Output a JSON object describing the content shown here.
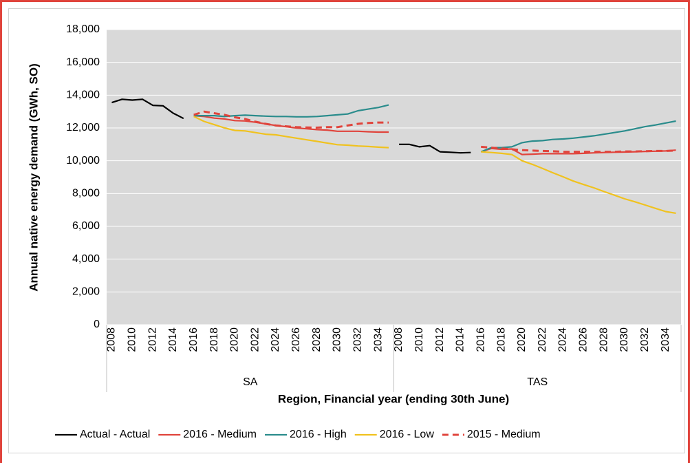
{
  "chart_data": {
    "type": "line",
    "y_label": "Annual native energy demand (GWh, SO)",
    "x_label": "Region, Financial year (ending 30th June)",
    "groups": [
      "SA",
      "TAS"
    ],
    "categories": [
      "2008",
      null,
      "2010",
      null,
      "2012",
      null,
      "2014",
      null,
      "2016",
      null,
      "2018",
      null,
      "2020",
      null,
      "2022",
      null,
      "2024",
      null,
      "2026",
      null,
      "2028",
      null,
      "2030",
      null,
      "2032",
      null,
      "2034",
      null,
      "2008",
      null,
      "2010",
      null,
      "2012",
      null,
      "2014",
      null,
      "2016",
      null,
      "2018",
      null,
      "2020",
      null,
      "2022",
      null,
      "2024",
      null,
      "2026",
      null,
      "2028",
      null,
      "2030",
      null,
      "2032",
      null,
      "2034",
      null
    ],
    "ylim": [
      0,
      18000
    ],
    "yticks": [
      0,
      {
        "value": 2000,
        "label": "2,000"
      },
      {
        "value": 4000,
        "label": "4,000"
      },
      {
        "value": 6000,
        "label": "6,000"
      },
      {
        "value": 8000,
        "label": "8,000"
      },
      {
        "value": 10000,
        "label": "10,000"
      },
      {
        "value": 12000,
        "label": "12,000"
      },
      {
        "value": 14000,
        "label": "14,000"
      },
      {
        "value": 16000,
        "label": "16,000"
      },
      {
        "value": 18000,
        "label": "18,000"
      }
    ],
    "grid": true,
    "legend": "bottom",
    "series": [
      {
        "name": "Actual - Actual",
        "color": "#000000",
        "dashed": false,
        "values": [
          13550,
          13750,
          13700,
          13750,
          13380,
          13350,
          12900,
          12580,
          null,
          null,
          null,
          null,
          null,
          null,
          null,
          null,
          null,
          null,
          null,
          null,
          null,
          null,
          null,
          null,
          null,
          null,
          null,
          null,
          11000,
          11000,
          10850,
          10920,
          10550,
          10520,
          10480,
          10500,
          null,
          null,
          null,
          null,
          null,
          null,
          null,
          null,
          null,
          null,
          null,
          null,
          null,
          null,
          null,
          null,
          null,
          null,
          null,
          null
        ]
      },
      {
        "name": "2016 - Medium",
        "color": "#e0443c",
        "dashed": false,
        "values": [
          null,
          null,
          null,
          null,
          null,
          null,
          null,
          null,
          12750,
          12700,
          12600,
          12550,
          12450,
          12430,
          12350,
          12250,
          12150,
          12080,
          12000,
          11950,
          11900,
          11870,
          11800,
          11800,
          11800,
          11770,
          11750,
          11750,
          null,
          null,
          null,
          null,
          null,
          null,
          null,
          null,
          10550,
          10750,
          10700,
          10720,
          10380,
          10400,
          10430,
          10430,
          10430,
          10430,
          10450,
          10480,
          10500,
          10520,
          10530,
          10550,
          10570,
          10580,
          10600,
          10650
        ]
      },
      {
        "name": "2016 - High",
        "color": "#2a8c8c",
        "dashed": false,
        "values": [
          null,
          null,
          null,
          null,
          null,
          null,
          null,
          null,
          12750,
          12750,
          12750,
          12700,
          12750,
          12780,
          12750,
          12720,
          12700,
          12700,
          12680,
          12680,
          12700,
          12750,
          12800,
          12850,
          13050,
          13150,
          13250,
          13400,
          null,
          null,
          null,
          null,
          null,
          null,
          null,
          null,
          10550,
          10800,
          10800,
          10850,
          11100,
          11200,
          11230,
          11300,
          11330,
          11380,
          11450,
          11520,
          11620,
          11720,
          11820,
          11950,
          12080,
          12180,
          12300,
          12420
        ]
      },
      {
        "name": "2016 - Low",
        "color": "#f0c21e",
        "dashed": false,
        "values": [
          null,
          null,
          null,
          null,
          null,
          null,
          null,
          null,
          12700,
          12400,
          12200,
          12000,
          11850,
          11820,
          11720,
          11620,
          11580,
          11480,
          11380,
          11280,
          11180,
          11080,
          10980,
          10950,
          10900,
          10870,
          10830,
          10800,
          null,
          null,
          null,
          null,
          null,
          null,
          null,
          null,
          10550,
          10500,
          10450,
          10380,
          10000,
          9780,
          9530,
          9270,
          9020,
          8760,
          8550,
          8350,
          8120,
          7900,
          7680,
          7500,
          7300,
          7100,
          6900,
          6800
        ]
      },
      {
        "name": "2015 - Medium",
        "color": "#e0443c",
        "dashed": true,
        "values": [
          null,
          null,
          null,
          null,
          null,
          null,
          null,
          null,
          12800,
          13000,
          12900,
          12800,
          12650,
          12550,
          12380,
          12250,
          12150,
          12100,
          12050,
          12030,
          12020,
          12050,
          12050,
          12150,
          12250,
          12300,
          12330,
          12330,
          null,
          null,
          null,
          null,
          null,
          null,
          null,
          null,
          10850,
          10800,
          10750,
          10700,
          10650,
          10620,
          10600,
          10580,
          10550,
          10550,
          10550,
          10550,
          10550,
          10550,
          10570,
          10570,
          10580,
          10600,
          10600,
          10620
        ]
      }
    ]
  }
}
